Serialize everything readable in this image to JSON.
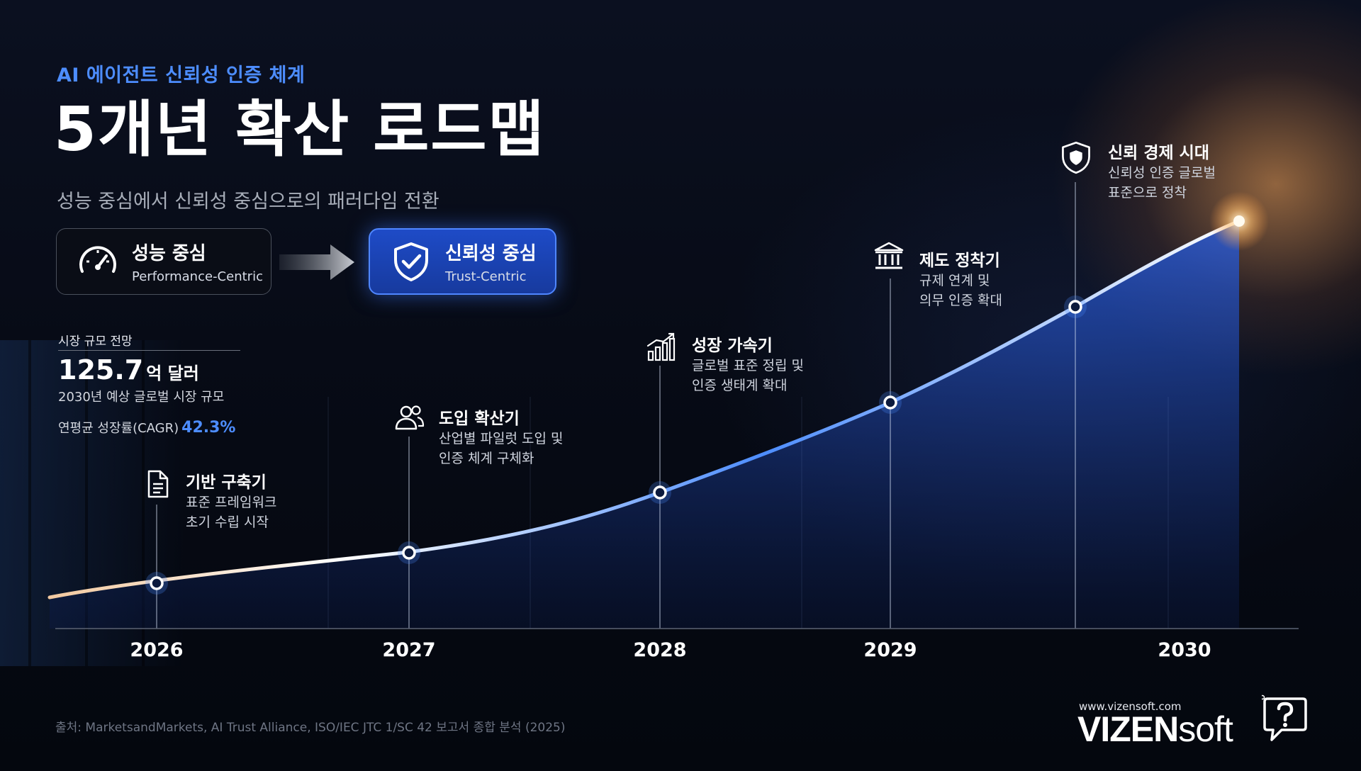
{
  "header": {
    "eyebrow": "AI 에이전트 신뢰성 인증 체계",
    "title": "5개년 확산 로드맵",
    "subtitle": "성능 중심에서 신뢰성 중심으로의 패러다임 전환"
  },
  "shift": {
    "from": {
      "title": "성능 중심",
      "subtitle": "Performance-Centric",
      "icon": "speedometer-icon"
    },
    "to": {
      "title": "신뢰성 중심",
      "subtitle": "Trust-Centric",
      "icon": "shield-check-icon"
    }
  },
  "market": {
    "label": "시장 규모 전망",
    "value": "125.7",
    "unit": "억 달러",
    "desc": "2030년 예상 글로벌 시장 규모",
    "cagr_label": "연평균 성장률(CAGR)",
    "cagr_value": "42.3%"
  },
  "milestones": [
    {
      "title": "기반 구축기",
      "line1": "표준 프레임워크",
      "line2": "초기 수립 시작",
      "icon": "document-icon"
    },
    {
      "title": "도입 확산기",
      "line1": "산업별 파일럿 도입 및",
      "line2": "인증 체계 구체화",
      "icon": "users-icon"
    },
    {
      "title": "성장 가속기",
      "line1": "글로벌 표준 정립 및",
      "line2": "인증 생태계 확대",
      "icon": "growth-chart-icon"
    },
    {
      "title": "제도 정착기",
      "line1": "규제 연계 및",
      "line2": "의무 인증 확대",
      "icon": "institution-icon"
    },
    {
      "title": "신뢰 경제 시대",
      "line1": "신뢰성 인증 글로벌",
      "line2": "표준으로 정착",
      "icon": "shield-icon"
    }
  ],
  "chart_data": {
    "type": "area",
    "years": [
      "2026",
      "2027",
      "2028",
      "2029",
      "2030"
    ]
  },
  "footer": {
    "source": "출처: MarketsandMarkets, AI Trust Alliance, ISO/IEC JTC 1/SC 42 보고서 종합 분석 (2025)",
    "brand_url": "www.vizensoft.com",
    "brand_strong": "VIZEN",
    "brand_light": "soft"
  },
  "colors": {
    "accent": "#4d8dff",
    "curve": "#7fa8ff",
    "glow": "#ffb060"
  }
}
